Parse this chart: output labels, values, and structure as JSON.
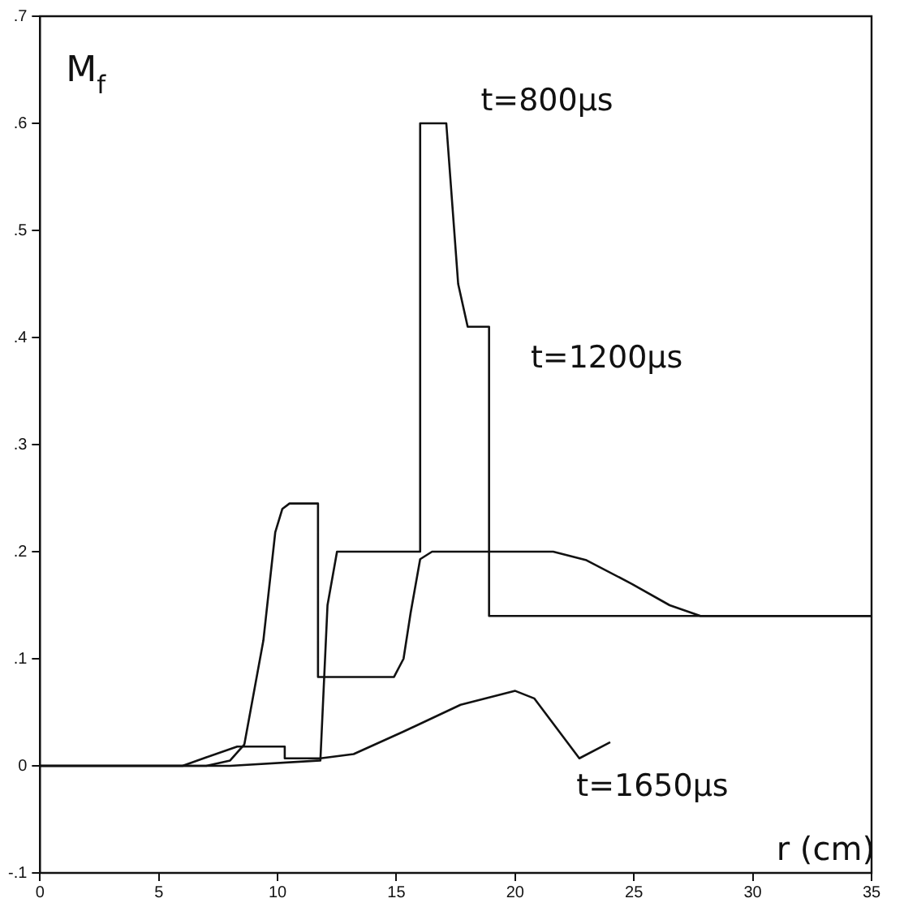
{
  "chart_data": {
    "type": "line",
    "ylabel": "M$_{f}$",
    "xlabel": "r (cm)",
    "xlim": [
      0,
      35
    ],
    "xticks": [
      0,
      5,
      10,
      15,
      20,
      25,
      30,
      35
    ],
    "ylim": [
      -0.1,
      0.7
    ],
    "yticks": [
      {
        "value": -0.1,
        "label": "-.1"
      },
      {
        "value": 0,
        "label": "0"
      },
      {
        "value": 0.1,
        "label": ".1"
      },
      {
        "value": 0.2,
        "label": ".2"
      },
      {
        "value": 0.3,
        "label": ".3"
      },
      {
        "value": 0.4,
        "label": ".4"
      },
      {
        "value": 0.5,
        "label": ".5"
      },
      {
        "value": 0.6,
        "label": ".6"
      },
      {
        "value": 0.7,
        "label": ".7"
      }
    ],
    "grid": false,
    "legend": false,
    "marker": "none",
    "line_style": "solid",
    "series": [
      {
        "color": "#111111",
        "x": [
          0,
          8.0,
          11.8,
          12.1,
          12.5,
          16.0,
          16.0,
          17.1,
          17.6,
          18.0,
          18.9,
          18.9,
          35
        ],
        "values": [
          0,
          0,
          0.005,
          0.15,
          0.2,
          0.2,
          0.6,
          0.6,
          0.45,
          0.41,
          0.41,
          0.14,
          0.14
        ]
      },
      {
        "color": "#111111",
        "x": [
          0,
          7.0,
          8.0,
          8.6,
          9.4,
          9.9,
          10.2,
          10.5,
          11.7,
          11.7,
          14.9,
          15.3,
          15.6,
          16.0,
          16.5,
          21.6,
          23.0,
          24.9,
          26.5,
          27.8,
          35
        ],
        "values": [
          0,
          0,
          0.005,
          0.02,
          0.117,
          0.218,
          0.24,
          0.245,
          0.245,
          0.083,
          0.083,
          0.1,
          0.143,
          0.193,
          0.2,
          0.2,
          0.192,
          0.17,
          0.15,
          0.14,
          0.14
        ]
      },
      {
        "color": "#111111",
        "x": [
          0,
          6.0,
          7.0,
          8.3,
          10.3,
          10.3,
          11.8,
          13.2,
          15.3,
          17.7,
          20.0,
          20.8,
          22.7,
          24.0
        ],
        "values": [
          0,
          0,
          0.008,
          0.018,
          0.018,
          0.007,
          0.007,
          0.011,
          0.032,
          0.057,
          0.07,
          0.063,
          0.007,
          0.022
        ]
      }
    ],
    "annotations": [
      "t=800μs",
      "t=1200μs",
      "t=1650μs"
    ]
  }
}
